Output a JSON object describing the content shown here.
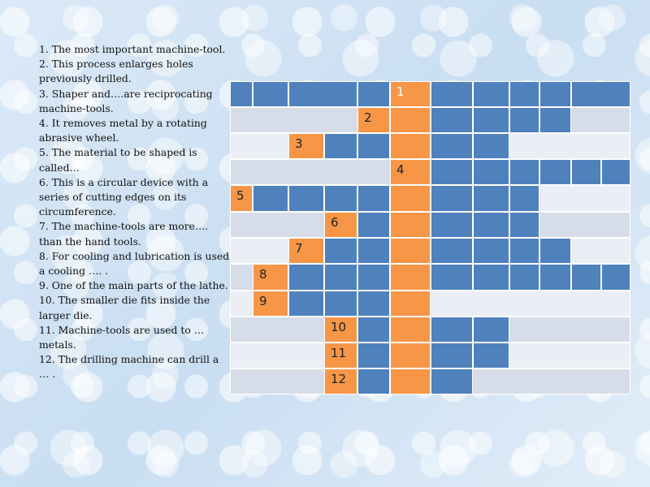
{
  "clues": [
    "1. The most important machine-tool.",
    "2. This process enlarges holes previously drilled.",
    "3. Shaper and….are reciprocating machine-tools.",
    "4. It removes metal by a rotating abrasive wheel.",
    "5. The material to be shaped is called…",
    "6. This is a circular device with a series of cutting edges on its circumference.",
    "7. The machine-tools are more…. than the hand tools.",
    "8. For cooling and lubrication is used a cooling ….  .",
    "9. One of the main parts of the lathe.",
    "10. The smaller die fits inside the larger die.",
    "11. Machine-tools are used to … metals.",
    "12. The drilling machine can drill a … ."
  ],
  "numbers": [
    "1",
    "2",
    "3",
    "4",
    "5",
    "6",
    "7",
    "8",
    "9",
    "10",
    "11",
    "12"
  ],
  "colors": {
    "answer_cell": "#4f81bd",
    "keyword_column": "#f79646",
    "row_band_dark": "#d7dde8",
    "row_band_light": "#ebeef4"
  }
}
